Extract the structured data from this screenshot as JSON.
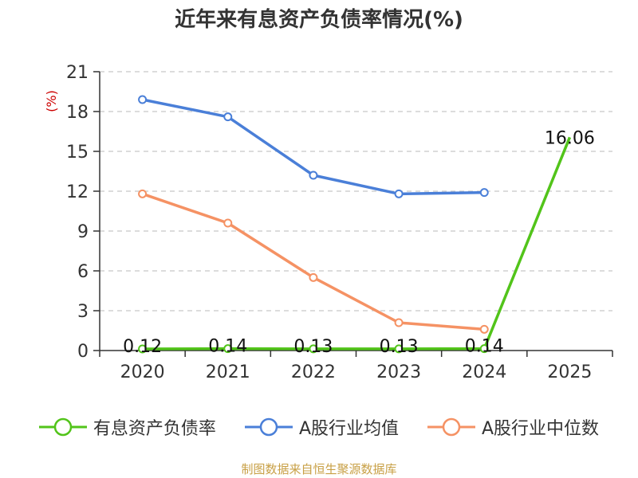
{
  "title": "近年来有息资产负债率情况(%)",
  "source": "制图数据来自恒生聚源数据库",
  "chart_data": {
    "type": "line",
    "title": "近年来有息资产负债率情况(%)",
    "ylabel": "(%)",
    "xlabel": "",
    "categories": [
      "2020",
      "2021",
      "2022",
      "2023",
      "2024",
      "2025"
    ],
    "ylim": [
      0,
      21
    ],
    "yticks": [
      0,
      3,
      6,
      9,
      12,
      15,
      18,
      21
    ],
    "grid": true,
    "legend_position": "bottom",
    "series": [
      {
        "name": "有息资产负债率",
        "color": "#52c41a",
        "values": [
          0.12,
          0.14,
          0.13,
          0.13,
          0.14,
          16.06
        ],
        "labels": [
          "0.12",
          "0.14",
          "0.13",
          "0.13",
          "0.14",
          "16.06"
        ]
      },
      {
        "name": "A股行业均值",
        "color": "#4a7fd8",
        "values": [
          18.9,
          17.6,
          13.2,
          11.8,
          11.9,
          null
        ]
      },
      {
        "name": "A股行业中位数",
        "color": "#f59264",
        "values": [
          11.8,
          9.6,
          5.5,
          2.1,
          1.6,
          null
        ]
      }
    ]
  }
}
